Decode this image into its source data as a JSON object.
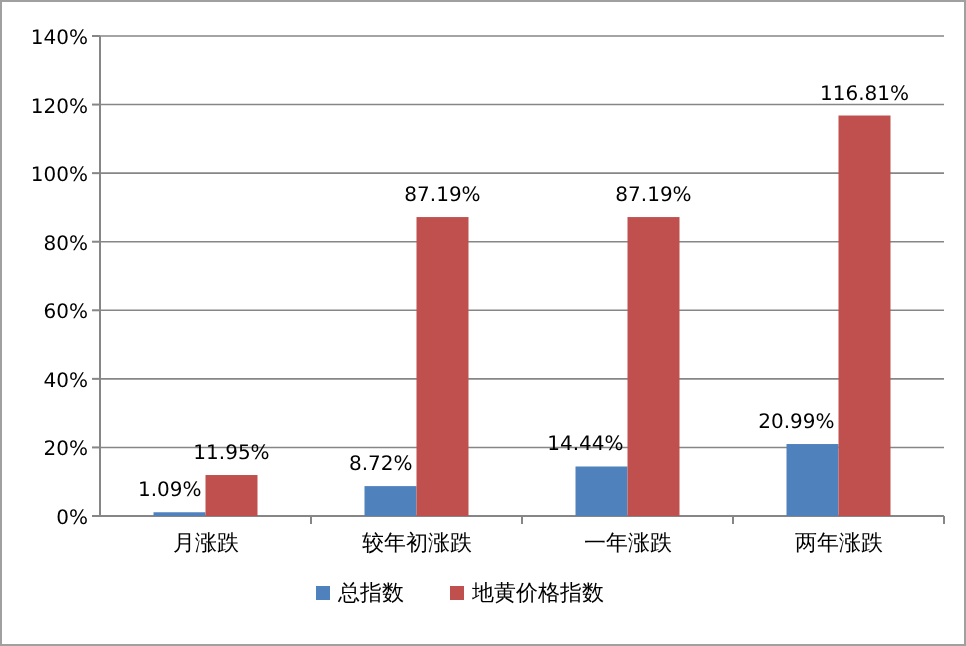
{
  "chart_data": {
    "type": "bar",
    "categories": [
      "月涨跌",
      "较年初涨跌",
      "一年涨跌",
      "两年涨跌"
    ],
    "series": [
      {
        "name": "总指数",
        "color": "#4f81bd",
        "values": [
          1.09,
          8.72,
          14.44,
          20.99
        ],
        "value_labels": [
          "1.09%",
          "8.72%",
          "14.44%",
          "20.99%"
        ]
      },
      {
        "name": "地黄价格指数",
        "color": "#c0504d",
        "values": [
          11.95,
          87.19,
          87.19,
          116.81
        ],
        "value_labels": [
          "11.95%",
          "87.19%",
          "87.19%",
          "116.81%"
        ]
      }
    ],
    "ylim": [
      0,
      140
    ],
    "yticks": [
      {
        "value": 0,
        "label": "0%"
      },
      {
        "value": 20,
        "label": "20%"
      },
      {
        "value": 40,
        "label": "40%"
      },
      {
        "value": 60,
        "label": "60%"
      },
      {
        "value": 80,
        "label": "80%"
      },
      {
        "value": 100,
        "label": "100%"
      },
      {
        "value": 120,
        "label": "120%"
      },
      {
        "value": 140,
        "label": "140%"
      }
    ],
    "grid": "y",
    "legend": "bottom"
  }
}
